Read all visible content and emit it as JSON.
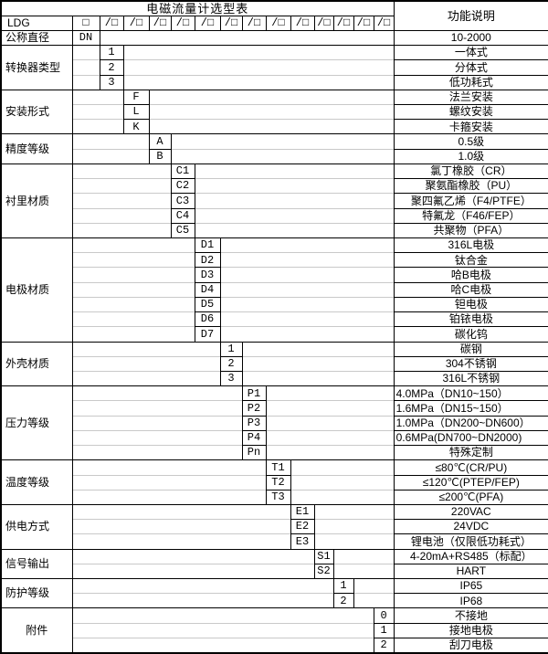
{
  "title": "电磁流量计选型表",
  "desc_header": "功能说明",
  "model_row": {
    "prefix": "LDG",
    "box": "□",
    "slots": [
      "/□",
      "/□",
      "/□",
      "/□",
      "/□",
      "/□",
      "/□",
      "/□",
      "/□",
      "/□",
      "/□",
      "/□",
      "/□"
    ]
  },
  "dn_row": {
    "label": "公称直径",
    "code": "DN",
    "desc": "10-2000"
  },
  "categories": [
    {
      "label": "转换器类型",
      "col": 1,
      "options": [
        {
          "code": "1",
          "desc": "一体式"
        },
        {
          "code": "2",
          "desc": "分体式"
        },
        {
          "code": "3",
          "desc": "低功耗式"
        }
      ]
    },
    {
      "label": "安装形式",
      "col": 2,
      "options": [
        {
          "code": "F",
          "desc": "法兰安装"
        },
        {
          "code": "L",
          "desc": "螺纹安装"
        },
        {
          "code": "K",
          "desc": "卡箍安装"
        }
      ]
    },
    {
      "label": "精度等级",
      "col": 3,
      "options": [
        {
          "code": "A",
          "desc": "0.5级"
        },
        {
          "code": "B",
          "desc": "1.0级"
        }
      ]
    },
    {
      "label": "衬里材质",
      "col": 4,
      "options": [
        {
          "code": "C1",
          "desc": "氯丁橡胶（CR）"
        },
        {
          "code": "C2",
          "desc": "聚氨酯橡胶（PU）"
        },
        {
          "code": "C3",
          "desc": "聚四氟乙烯（F4/PTFE）"
        },
        {
          "code": "C4",
          "desc": "特氟龙（F46/FEP）"
        },
        {
          "code": "C5",
          "desc": "共聚物（PFA）"
        }
      ]
    },
    {
      "label": "电极材质",
      "col": 5,
      "options": [
        {
          "code": "D1",
          "desc": "316L电极"
        },
        {
          "code": "D2",
          "desc": "钛合金"
        },
        {
          "code": "D3",
          "desc": "哈B电极"
        },
        {
          "code": "D4",
          "desc": "哈C电极"
        },
        {
          "code": "D5",
          "desc": "钽电极"
        },
        {
          "code": "D6",
          "desc": "铂铱电极"
        },
        {
          "code": "D7",
          "desc": "碳化钨"
        }
      ]
    },
    {
      "label": "外壳材质",
      "col": 6,
      "options": [
        {
          "code": "1",
          "desc": "碳钢"
        },
        {
          "code": "2",
          "desc": "304不锈钢"
        },
        {
          "code": "3",
          "desc": "316L不锈钢"
        }
      ]
    },
    {
      "label": "压力等级",
      "col": 7,
      "desc_align": "left",
      "options": [
        {
          "code": "P1",
          "desc": "4.0MPa（DN10~150）"
        },
        {
          "code": "P2",
          "desc": "1.6MPa（DN15~150）"
        },
        {
          "code": "P3",
          "desc": "1.0MPa（DN200~DN600）"
        },
        {
          "code": "P4",
          "desc": "0.6MPa(DN700~DN2000)"
        },
        {
          "code": "Pn",
          "desc": "特殊定制",
          "align": "center"
        }
      ]
    },
    {
      "label": "温度等级",
      "col": 8,
      "options": [
        {
          "code": "T1",
          "desc": "≤80℃(CR/PU)"
        },
        {
          "code": "T2",
          "desc": "≤120℃(PTEP/FEP)"
        },
        {
          "code": "T3",
          "desc": "≤200℃(PFA)"
        }
      ]
    },
    {
      "label": "供电方式",
      "col": 9,
      "options": [
        {
          "code": "E1",
          "desc": "220VAC"
        },
        {
          "code": "E2",
          "desc": "24VDC"
        },
        {
          "code": "E3",
          "desc": "锂电池（仅限低功耗式）"
        }
      ]
    },
    {
      "label": "信号输出",
      "col": 10,
      "options": [
        {
          "code": "S1",
          "desc": "4-20mA+RS485（标配）"
        },
        {
          "code": "S2",
          "desc": "HART"
        }
      ]
    },
    {
      "label": "防护等级",
      "col": 11,
      "options": [
        {
          "code": "1",
          "desc": "IP65"
        },
        {
          "code": "2",
          "desc": "IP68"
        }
      ]
    },
    {
      "label": "附件",
      "col": 13,
      "align": "center",
      "options": [
        {
          "code": "0",
          "desc": "不接地"
        },
        {
          "code": "1",
          "desc": "接地电极"
        },
        {
          "code": "2",
          "desc": "刮刀电极"
        }
      ]
    }
  ],
  "colors": {
    "border": "#000000",
    "faint_grid": "#c9c9c9",
    "text": "#000000",
    "background": "#ffffff"
  }
}
